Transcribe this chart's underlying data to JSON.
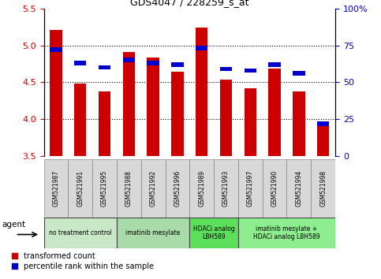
{
  "title": "GDS4047 / 228259_s_at",
  "samples": [
    "GSM521987",
    "GSM521991",
    "GSM521995",
    "GSM521988",
    "GSM521992",
    "GSM521996",
    "GSM521989",
    "GSM521993",
    "GSM521997",
    "GSM521990",
    "GSM521994",
    "GSM521998"
  ],
  "red_values": [
    5.21,
    4.48,
    4.38,
    4.91,
    4.83,
    4.64,
    5.24,
    4.54,
    4.42,
    4.69,
    4.38,
    3.93
  ],
  "blue_values": [
    72,
    63,
    60,
    65,
    63,
    62,
    73,
    59,
    58,
    62,
    56,
    22
  ],
  "ylim_left": [
    3.5,
    5.5
  ],
  "ylim_right": [
    0,
    100
  ],
  "yticks_left": [
    3.5,
    4.0,
    4.5,
    5.0,
    5.5
  ],
  "yticks_right": [
    0,
    25,
    50,
    75,
    100
  ],
  "hlines": [
    4.0,
    4.5,
    5.0
  ],
  "agent_groups": [
    {
      "label": "no treatment control",
      "start": 0,
      "end": 3,
      "color": "#c8e8c8"
    },
    {
      "label": "imatinib mesylate",
      "start": 3,
      "end": 6,
      "color": "#a8dba8"
    },
    {
      "label": "HDACi analog\nLBH589",
      "start": 6,
      "end": 8,
      "color": "#5ce05c"
    },
    {
      "label": "imatinib mesylate +\nHDACi analog LBH589",
      "start": 8,
      "end": 12,
      "color": "#8eed8e"
    }
  ],
  "bar_width": 0.5,
  "red_color": "#cc0000",
  "blue_color": "#0000cc",
  "background_color": "#ffffff",
  "plot_bg_color": "#ffffff",
  "tick_color_left": "#cc0000",
  "tick_color_right": "#0000cc",
  "grid_color": "#000000",
  "legend_red": "transformed count",
  "legend_blue": "percentile rank within the sample",
  "agent_label": "agent",
  "sample_box_color": "#d8d8d8",
  "sample_box_edge": "#888888"
}
